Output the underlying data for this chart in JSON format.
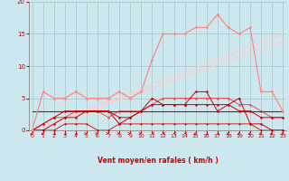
{
  "xlabel": "Vent moyen/en rafales ( km/h )",
  "background_color": "#cce8ee",
  "grid_color": "#aacccc",
  "x": [
    0,
    1,
    2,
    3,
    4,
    5,
    6,
    7,
    8,
    9,
    10,
    11,
    12,
    13,
    14,
    15,
    16,
    17,
    18,
    19,
    20,
    21,
    22,
    23
  ],
  "line_rafales": [
    0,
    6,
    5,
    5,
    6,
    5,
    5,
    5,
    6,
    5,
    6,
    11,
    15,
    15,
    15,
    16,
    16,
    18,
    16,
    15,
    16,
    6,
    6,
    3
  ],
  "line_trend1": [
    0,
    0.65,
    1.3,
    1.95,
    2.6,
    3.25,
    3.9,
    4.55,
    5.2,
    5.85,
    6.5,
    7.15,
    7.8,
    8.45,
    9.1,
    9.75,
    10.4,
    11.05,
    11.7,
    12.35,
    13.0,
    13.65,
    14.3,
    14.95
  ],
  "line_trend2": [
    0,
    0.6,
    1.2,
    1.8,
    2.4,
    3.0,
    3.6,
    4.2,
    4.8,
    5.4,
    6.0,
    6.6,
    7.2,
    7.8,
    8.4,
    9.0,
    9.6,
    10.2,
    10.8,
    11.4,
    12.0,
    12.6,
    13.2,
    13.8
  ],
  "line_moy1": [
    0,
    0,
    1,
    2,
    2,
    3,
    3,
    3,
    2,
    2,
    3,
    5,
    4,
    4,
    4,
    6,
    6,
    3,
    4,
    5,
    1,
    1,
    0,
    0
  ],
  "line_moy2": [
    3,
    3,
    3,
    3,
    3,
    3,
    3,
    3,
    3,
    3,
    3,
    3,
    3,
    3,
    3,
    3,
    3,
    3,
    3,
    3,
    3,
    3,
    3,
    3
  ],
  "line_moy3": [
    0,
    1,
    2,
    3,
    3,
    3,
    3,
    3,
    1,
    2,
    3,
    4,
    4,
    4,
    4,
    4,
    4,
    4,
    4,
    3,
    3,
    2,
    2,
    2
  ],
  "line_moy4": [
    0,
    1,
    2,
    2,
    3,
    3,
    3,
    2,
    3,
    3,
    3,
    4,
    5,
    5,
    5,
    5,
    5,
    5,
    5,
    4,
    4,
    3,
    2,
    2
  ],
  "line_moy5": [
    0,
    0,
    0,
    1,
    1,
    1,
    0,
    0,
    1,
    1,
    1,
    1,
    1,
    1,
    1,
    1,
    1,
    1,
    1,
    1,
    1,
    0,
    0,
    0
  ],
  "xlim": [
    -0.3,
    23.3
  ],
  "ylim": [
    0,
    20
  ],
  "yticks": [
    0,
    5,
    10,
    15,
    20
  ],
  "xticks": [
    0,
    1,
    2,
    3,
    4,
    5,
    6,
    7,
    8,
    9,
    10,
    11,
    12,
    13,
    14,
    15,
    16,
    17,
    18,
    19,
    20,
    21,
    22,
    23
  ],
  "color_dark_red": "#cc0000",
  "color_med_red": "#dd5555",
  "color_salmon": "#ff8888",
  "color_light_salmon": "#ffaaaa",
  "color_pale": "#ffcccc",
  "arrow_angles": [
    315,
    315,
    45,
    45,
    45,
    90,
    90,
    90,
    90,
    90,
    90,
    270,
    270,
    270,
    270,
    315,
    45,
    45,
    315,
    315,
    315,
    315,
    315,
    315
  ]
}
